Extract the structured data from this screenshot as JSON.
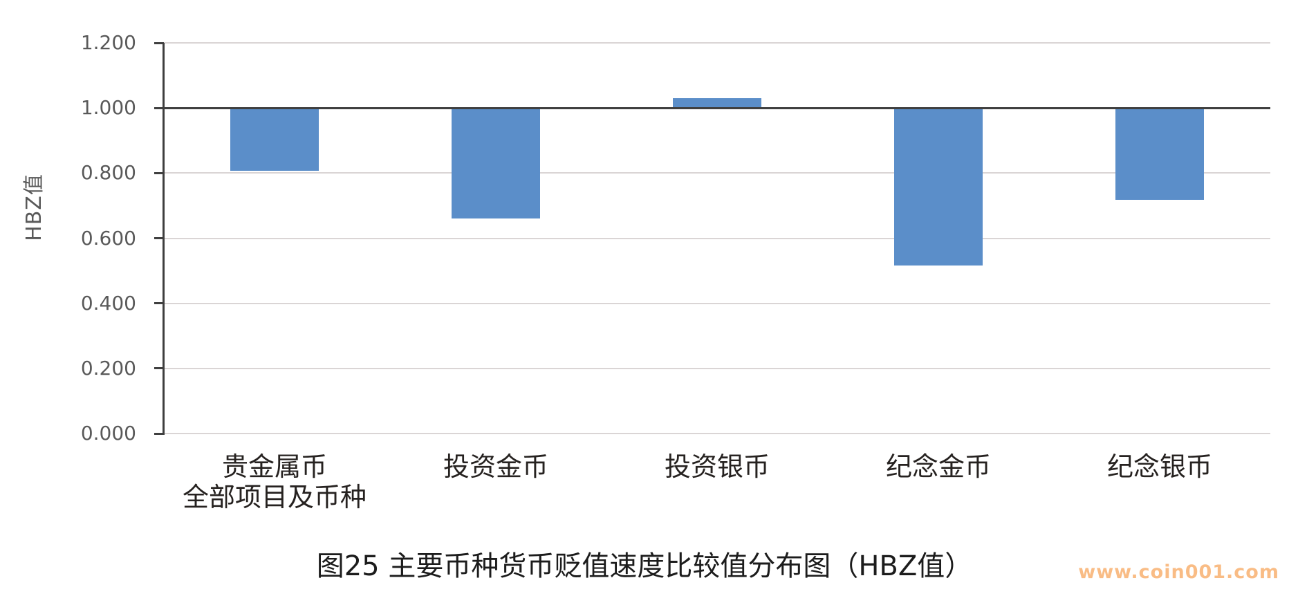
{
  "caption": "图25 主要币种货币贬值速度比较值分布图（HBZ值）",
  "watermark": {
    "text": "www.coin001.com",
    "color": "#F9BC85"
  },
  "chart_data": {
    "type": "bar",
    "title": "图25 主要币种货币贬值速度比较值分布图（HBZ值）",
    "ylabel": "HBZ值",
    "xlabel": "",
    "categories": [
      "贵金属币\n全部项目及币种",
      "投资金币",
      "投资银币",
      "纪念金币",
      "纪念银币"
    ],
    "values": [
      0.807,
      0.66,
      1.031,
      0.516,
      0.718
    ],
    "bar_baseline": 1.0,
    "ylim": [
      0.0,
      1.2
    ],
    "yticks": [
      1.2,
      1.0,
      0.8,
      0.6,
      0.4,
      0.2,
      0.0
    ],
    "ytick_labels": [
      "1.200",
      "1.000",
      "0.800",
      "0.600",
      "0.400",
      "0.200",
      "0.000"
    ],
    "grid": true,
    "legend": "none",
    "bar_color": "#5B8EC9",
    "axis_color": "#3F3F3F",
    "gridline_color": "#DAD5D5",
    "tick_label_color": "#595959"
  }
}
